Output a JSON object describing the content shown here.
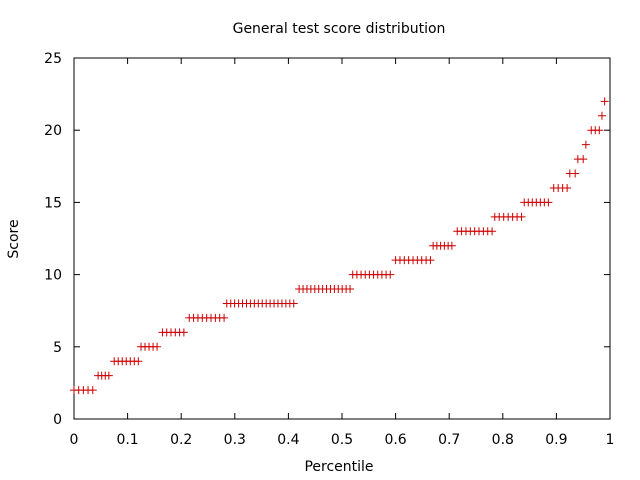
{
  "chart_data": {
    "type": "scatter",
    "title": "General test score distribution",
    "xlabel": "Percentile",
    "ylabel": "Score",
    "xlim": [
      0,
      1
    ],
    "ylim": [
      0,
      25
    ],
    "xticks": [
      "0",
      "0.1",
      "0.2",
      "0.3",
      "0.4",
      "0.5",
      "0.6",
      "0.7",
      "0.8",
      "0.9",
      "1"
    ],
    "yticks": [
      "0",
      "5",
      "10",
      "15",
      "20",
      "25"
    ],
    "grid": false,
    "marker": "plus",
    "marker_color": "#cc0000",
    "groups": [
      {
        "score": 2,
        "x_start": 0.0,
        "x_end": 0.035,
        "count": 5
      },
      {
        "score": 3,
        "x_start": 0.045,
        "x_end": 0.065,
        "count": 4
      },
      {
        "score": 4,
        "x_start": 0.075,
        "x_end": 0.12,
        "count": 7
      },
      {
        "score": 5,
        "x_start": 0.125,
        "x_end": 0.155,
        "count": 5
      },
      {
        "score": 6,
        "x_start": 0.165,
        "x_end": 0.205,
        "count": 6
      },
      {
        "score": 7,
        "x_start": 0.215,
        "x_end": 0.28,
        "count": 9
      },
      {
        "score": 8,
        "x_start": 0.285,
        "x_end": 0.41,
        "count": 18
      },
      {
        "score": 9,
        "x_start": 0.42,
        "x_end": 0.515,
        "count": 14
      },
      {
        "score": 10,
        "x_start": 0.52,
        "x_end": 0.59,
        "count": 10
      },
      {
        "score": 11,
        "x_start": 0.6,
        "x_end": 0.665,
        "count": 9
      },
      {
        "score": 12,
        "x_start": 0.67,
        "x_end": 0.705,
        "count": 6
      },
      {
        "score": 13,
        "x_start": 0.715,
        "x_end": 0.78,
        "count": 9
      },
      {
        "score": 14,
        "x_start": 0.785,
        "x_end": 0.835,
        "count": 7
      },
      {
        "score": 15,
        "x_start": 0.84,
        "x_end": 0.885,
        "count": 7
      },
      {
        "score": 16,
        "x_start": 0.895,
        "x_end": 0.92,
        "count": 4
      },
      {
        "score": 17,
        "x_start": 0.925,
        "x_end": 0.935,
        "count": 2
      },
      {
        "score": 18,
        "x_start": 0.94,
        "x_end": 0.95,
        "count": 2
      },
      {
        "score": 19,
        "x_start": 0.955,
        "x_end": 0.955,
        "count": 1
      },
      {
        "score": 20,
        "x_start": 0.965,
        "x_end": 0.98,
        "count": 3
      },
      {
        "score": 21,
        "x_start": 0.985,
        "x_end": 0.985,
        "count": 1
      },
      {
        "score": 22,
        "x_start": 0.99,
        "x_end": 0.99,
        "count": 1
      }
    ]
  }
}
